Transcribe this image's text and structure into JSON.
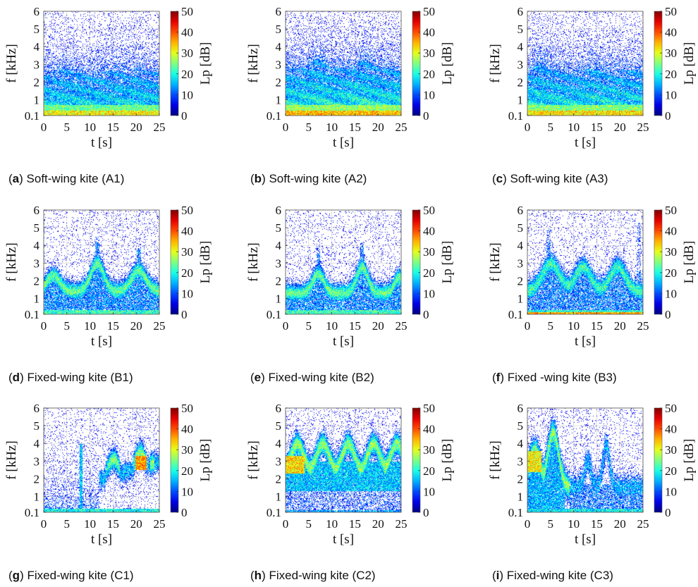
{
  "chart_data": [
    {
      "type": "heatmap",
      "panel": "A1",
      "caption_letter": "a",
      "caption_text": ") Soft-wing kite (A1)",
      "xlabel": "t [s]",
      "ylabel": "f [kHz]",
      "colorbar_label": "Lp [dB]",
      "x_ticks": [
        0,
        5,
        10,
        15,
        20,
        25
      ],
      "y_ticks": [
        "0.1",
        "1",
        "2",
        "3",
        "4",
        "5",
        "6"
      ],
      "colorbar_ticks": [
        0,
        10,
        20,
        30,
        40,
        50
      ],
      "xlim": [
        0,
        25
      ],
      "ylim": [
        0.1,
        6
      ],
      "clim": [
        0,
        50
      ],
      "grid": true,
      "colormap": "jet",
      "pattern": {
        "kind": "soft",
        "seed": 11,
        "level": 20,
        "topFreq": 2.6,
        "undulate": [
          [
            5,
            0.3
          ],
          [
            16,
            0.25
          ],
          [
            20,
            0.2
          ]
        ]
      }
    },
    {
      "type": "heatmap",
      "panel": "A2",
      "caption_letter": "b",
      "caption_text": ") Soft-wing kite (A2)",
      "xlabel": "t [s]",
      "ylabel": "f [kHz]",
      "colorbar_label": "Lp [dB]",
      "x_ticks": [
        0,
        5,
        10,
        15,
        20,
        25
      ],
      "y_ticks": [
        "0.1",
        "1",
        "2",
        "3",
        "4",
        "5",
        "6"
      ],
      "colorbar_ticks": [
        0,
        10,
        20,
        30,
        40,
        50
      ],
      "xlim": [
        0,
        25
      ],
      "ylim": [
        0.1,
        6
      ],
      "clim": [
        0,
        50
      ],
      "grid": true,
      "colormap": "jet",
      "pattern": {
        "kind": "soft",
        "seed": 22,
        "level": 22,
        "topFreq": 2.8,
        "undulate": [
          [
            7,
            0.6
          ],
          [
            17,
            0.5
          ]
        ]
      }
    },
    {
      "type": "heatmap",
      "panel": "A3",
      "caption_letter": "c",
      "caption_text": ") Soft-wing kite (A3)",
      "xlabel": "t [s]",
      "ylabel": "f [kHz]",
      "colorbar_label": "Lp [dB]",
      "x_ticks": [
        0,
        5,
        10,
        15,
        20,
        25
      ],
      "y_ticks": [
        "0.1",
        "1",
        "2",
        "3",
        "4",
        "5",
        "6"
      ],
      "colorbar_ticks": [
        0,
        10,
        20,
        30,
        40,
        50
      ],
      "xlim": [
        0,
        25
      ],
      "ylim": [
        0.1,
        6
      ],
      "clim": [
        0,
        50
      ],
      "grid": true,
      "colormap": "jet",
      "pattern": {
        "kind": "soft",
        "seed": 33,
        "level": 21,
        "topFreq": 2.7,
        "undulate": [
          [
            3,
            0.5
          ],
          [
            15,
            0.3
          ]
        ]
      }
    },
    {
      "type": "heatmap",
      "panel": "B1",
      "caption_letter": "d",
      "caption_text": ") Fixed-wing kite (B1)",
      "xlabel": "t [s]",
      "ylabel": "f [kHz]",
      "colorbar_label": "Lp [dB]",
      "x_ticks": [
        0,
        5,
        10,
        15,
        20,
        25
      ],
      "y_ticks": [
        "0.1",
        "1",
        "2",
        "3",
        "4",
        "5",
        "6"
      ],
      "colorbar_ticks": [
        0,
        10,
        20,
        30,
        40,
        50
      ],
      "xlim": [
        0,
        25
      ],
      "ylim": [
        0.1,
        6
      ],
      "clim": [
        0,
        50
      ],
      "grid": true,
      "colormap": "jet",
      "pattern": {
        "kind": "fixed",
        "seed": 44,
        "level": 24,
        "base": 1.4,
        "peaks": [
          [
            2,
            2.3,
            1.4
          ],
          [
            11.5,
            3.0,
            1.4
          ],
          [
            20.5,
            2.6,
            1.6
          ]
        ],
        "width": 0.35,
        "spikes": [
          [
            11.5,
            4.5
          ],
          [
            20.5,
            4.0
          ]
        ]
      }
    },
    {
      "type": "heatmap",
      "panel": "B2",
      "caption_letter": "e",
      "caption_text": ") Fixed-wing kite (B2)",
      "xlabel": "t [s]",
      "ylabel": "f [kHz]",
      "colorbar_label": "Lp [dB]",
      "x_ticks": [
        0,
        5,
        10,
        15,
        20,
        25
      ],
      "y_ticks": [
        "0.1",
        "1",
        "2",
        "3",
        "4",
        "5",
        "6"
      ],
      "colorbar_ticks": [
        0,
        10,
        20,
        30,
        40,
        50
      ],
      "xlim": [
        0,
        25
      ],
      "ylim": [
        0.1,
        6
      ],
      "clim": [
        0,
        50
      ],
      "grid": true,
      "colormap": "jet",
      "pattern": {
        "kind": "fixed",
        "seed": 55,
        "level": 24,
        "base": 1.3,
        "peaks": [
          [
            7,
            2.4,
            1.2
          ],
          [
            16.5,
            2.8,
            1.2
          ],
          [
            24.5,
            2.2,
            1.0
          ]
        ],
        "width": 0.35,
        "spikes": [
          [
            7,
            4.0
          ],
          [
            16.5,
            4.2
          ]
        ]
      }
    },
    {
      "type": "heatmap",
      "panel": "B3",
      "caption_letter": "f",
      "caption_text": ") Fixed -wing kite (B3)",
      "xlabel": "t [s]",
      "ylabel": "f [kHz]",
      "colorbar_label": "Lp [dB]",
      "x_ticks": [
        0,
        5,
        10,
        15,
        20,
        25
      ],
      "y_ticks": [
        "0.1",
        "1",
        "2",
        "3",
        "4",
        "5",
        "6"
      ],
      "colorbar_ticks": [
        0,
        10,
        20,
        30,
        40,
        50
      ],
      "xlim": [
        0,
        25
      ],
      "ylim": [
        0.1,
        6
      ],
      "clim": [
        0,
        50
      ],
      "grid": true,
      "colormap": "jet",
      "pattern": {
        "kind": "fixed",
        "seed": 66,
        "level": 22,
        "base": 1.4,
        "peaks": [
          [
            5,
            3.0,
            1.8
          ],
          [
            12,
            2.8,
            1.6
          ],
          [
            19.5,
            2.8,
            1.6
          ]
        ],
        "width": 0.4,
        "spikes": [
          [
            24,
            5.3
          ],
          [
            4.5,
            5.0
          ]
        ],
        "redFloor": true
      }
    },
    {
      "type": "heatmap",
      "panel": "C1",
      "caption_letter": "g",
      "caption_text": ") Fixed-wing kite (C1)",
      "xlabel": "t [s]",
      "ylabel": "f [kHz]",
      "colorbar_label": "Lp [dB]",
      "x_ticks": [
        0,
        5,
        10,
        15,
        20,
        25
      ],
      "y_ticks": [
        "0.1",
        "1",
        "2",
        "3",
        "4",
        "5",
        "6"
      ],
      "colorbar_ticks": [
        0,
        10,
        20,
        30,
        40,
        50
      ],
      "xlim": [
        0,
        25
      ],
      "ylim": [
        0.1,
        6
      ],
      "clim": [
        0,
        50
      ],
      "grid": true,
      "colormap": "jet",
      "pattern": {
        "kind": "c1",
        "seed": 77,
        "level": 26
      }
    },
    {
      "type": "heatmap",
      "panel": "C2",
      "caption_letter": "h",
      "caption_text": ") Fixed-wing kite (C2)",
      "xlabel": "t [s]",
      "ylabel": "f [kHz]",
      "colorbar_label": "Lp [dB]",
      "x_ticks": [
        0,
        5,
        10,
        15,
        20,
        25
      ],
      "y_ticks": [
        "0.1",
        "1",
        "2",
        "3",
        "4",
        "5",
        "6"
      ],
      "colorbar_ticks": [
        0,
        10,
        20,
        30,
        40,
        50
      ],
      "xlim": [
        0,
        25
      ],
      "ylim": [
        0.1,
        6
      ],
      "clim": [
        0,
        50
      ],
      "grid": true,
      "colormap": "jet",
      "pattern": {
        "kind": "c2",
        "seed": 88,
        "level": 26
      }
    },
    {
      "type": "heatmap",
      "panel": "C3",
      "caption_letter": "i",
      "caption_text": ") Fixed-wing kite (C3)",
      "xlabel": "t [s]",
      "ylabel": "f [kHz]",
      "colorbar_label": "Lp [dB]",
      "x_ticks": [
        0,
        5,
        10,
        15,
        20,
        25
      ],
      "y_ticks": [
        "0.1",
        "1",
        "2",
        "3",
        "4",
        "5",
        "6"
      ],
      "colorbar_ticks": [
        0,
        10,
        20,
        30,
        40,
        50
      ],
      "xlim": [
        0,
        25
      ],
      "ylim": [
        0.1,
        6
      ],
      "clim": [
        0,
        50
      ],
      "grid": true,
      "colormap": "jet",
      "pattern": {
        "kind": "c3",
        "seed": 99,
        "level": 26
      }
    }
  ]
}
